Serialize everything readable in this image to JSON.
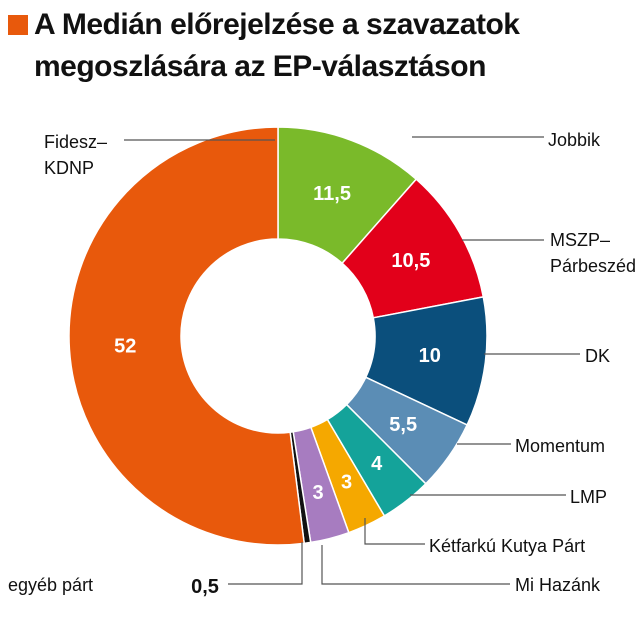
{
  "chart_data": {
    "type": "pie",
    "style": "donut",
    "title": "A Medián előrejelzése a szavazatok megoszlására az EP-választáson",
    "title_square_color": "#e8590c",
    "slices": [
      {
        "label": "Jobbik",
        "value": 11.5,
        "value_label": "11,5",
        "color": "#7aba2a"
      },
      {
        "label": "MSZP–Párbeszéd",
        "label_lines": [
          "MSZP–",
          "Párbeszéd"
        ],
        "value": 10.5,
        "value_label": "10,5",
        "color": "#e2001a"
      },
      {
        "label": "DK",
        "value": 10,
        "value_label": "10",
        "color": "#0b4f7c"
      },
      {
        "label": "Momentum",
        "value": 5.5,
        "value_label": "5,5",
        "color": "#5b8db5"
      },
      {
        "label": "LMP",
        "value": 4,
        "value_label": "4",
        "color": "#14a39a"
      },
      {
        "label": "Kétfarkú Kutya Párt",
        "value": 3,
        "value_label": "3",
        "color": "#f5a800"
      },
      {
        "label": "Mi Hazánk",
        "value": 3,
        "value_label": "3",
        "color": "#a77cc0"
      },
      {
        "label": "egyéb párt",
        "value": 0.5,
        "value_label": "0,5",
        "color": "#111111"
      },
      {
        "label": "Fidesz–KDNP",
        "label_lines": [
          "Fidesz–",
          "KDNP"
        ],
        "value": 52,
        "value_label": "52",
        "color": "#e8590c"
      }
    ]
  }
}
